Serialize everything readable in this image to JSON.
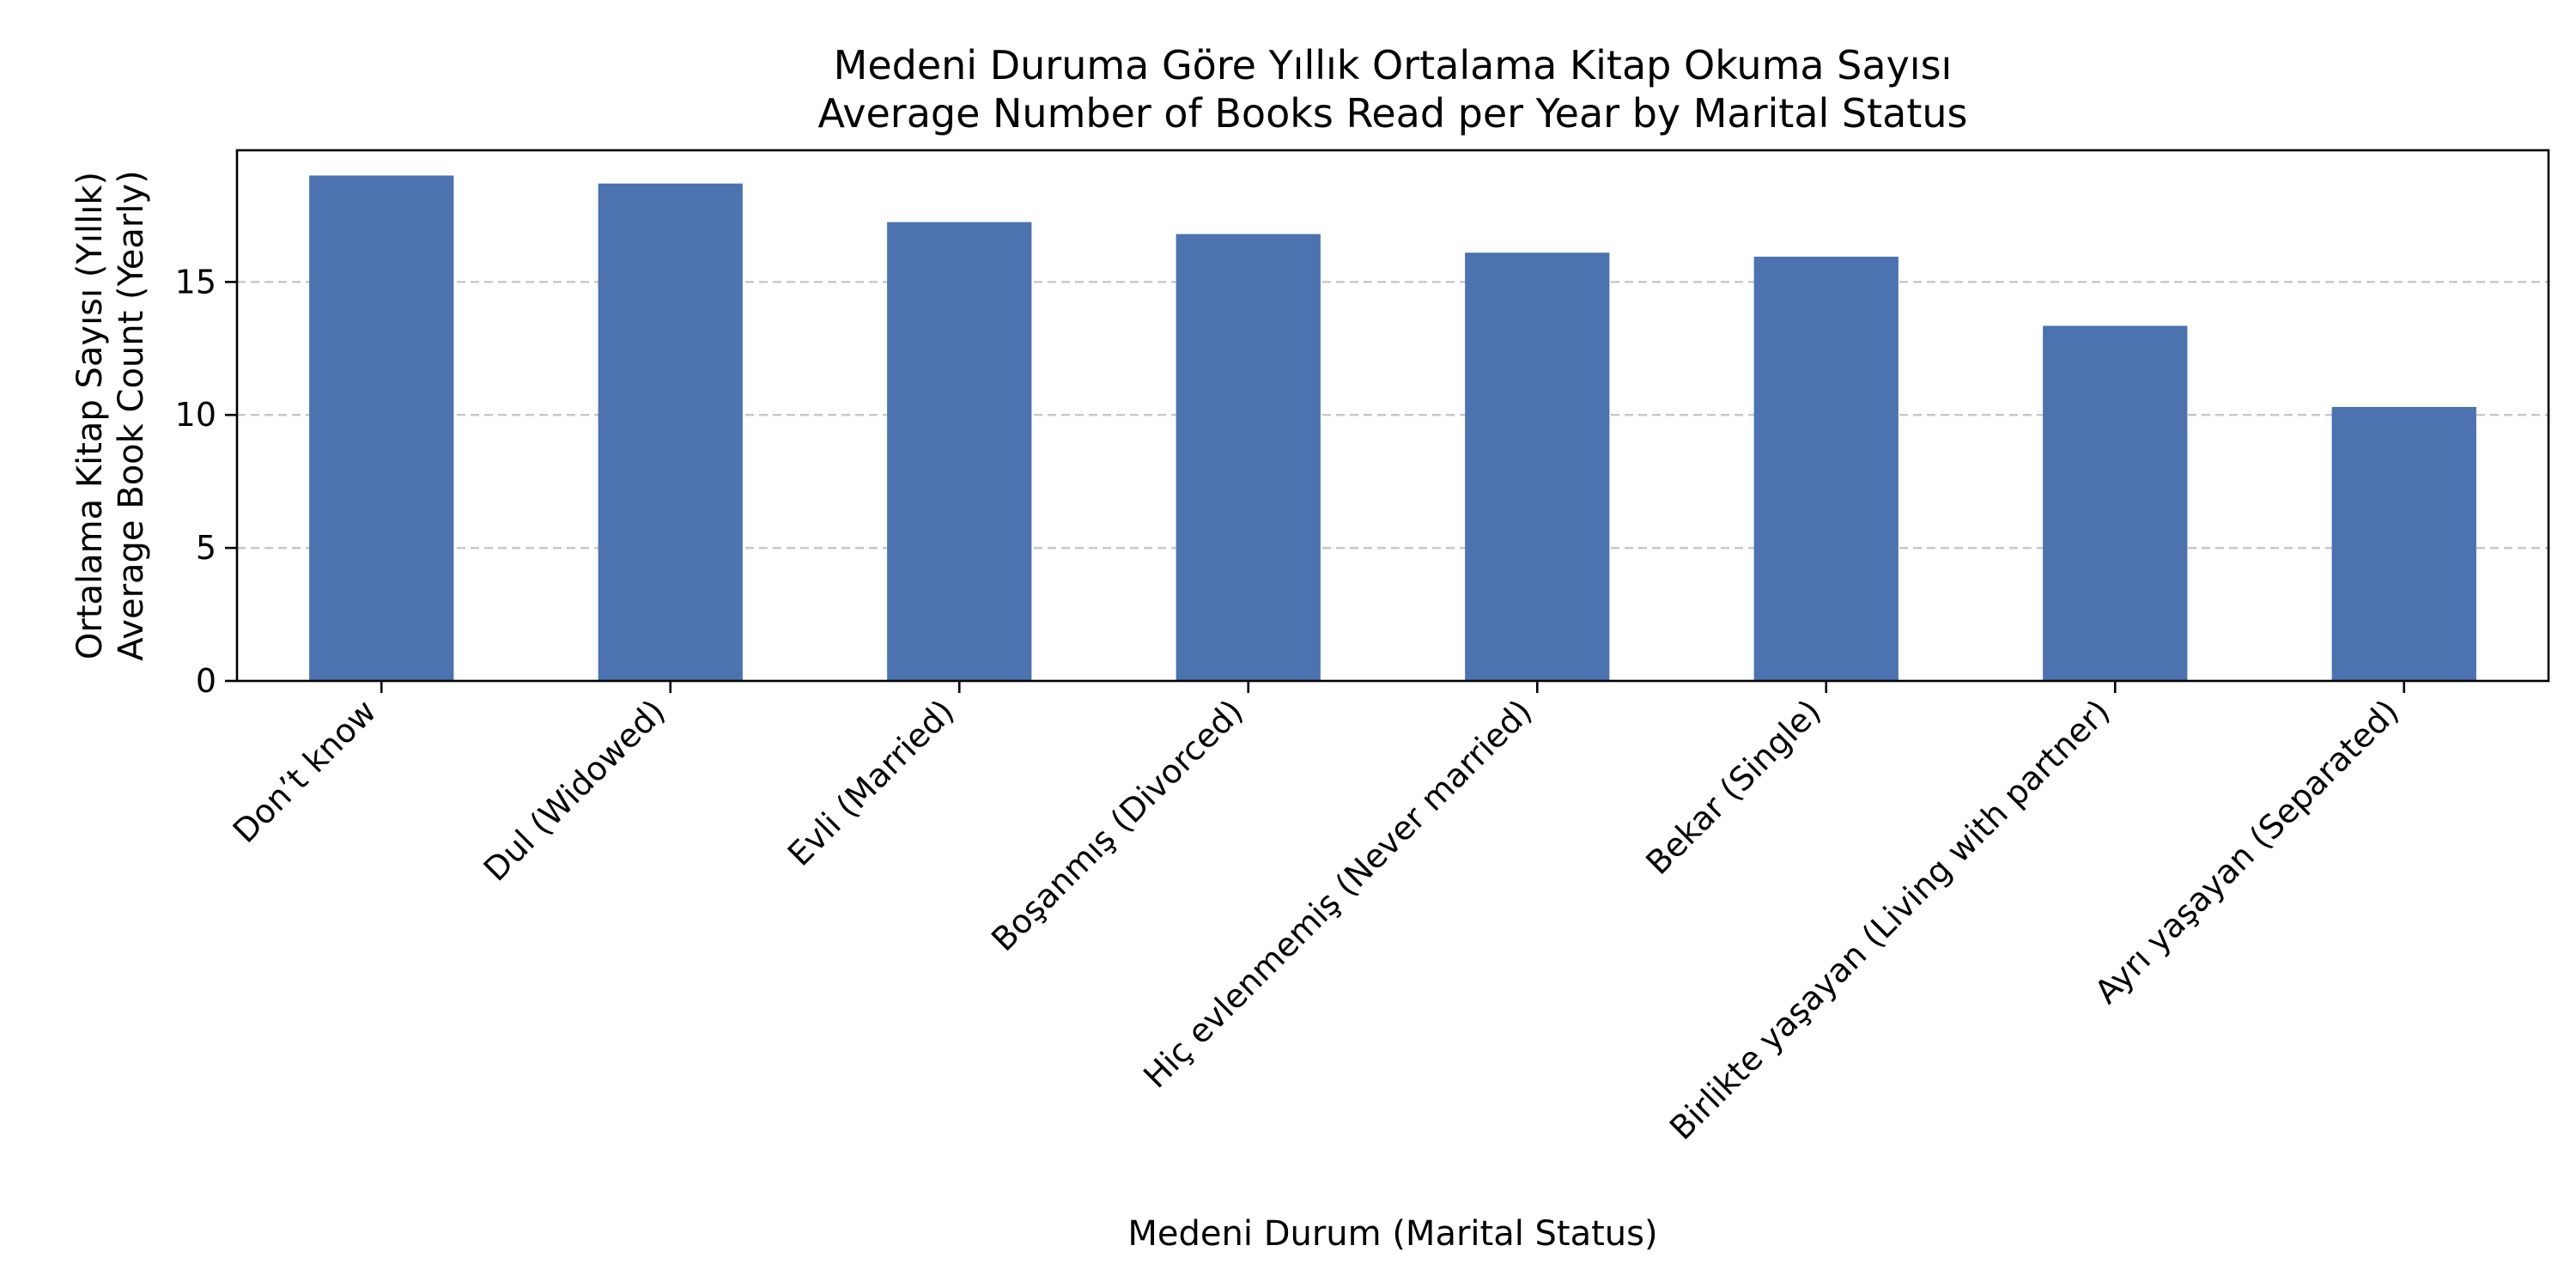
{
  "chart_data": {
    "type": "bar",
    "title_line1": "Medeni Duruma Göre Yıllık Ortalama Kitap Okuma Sayısı",
    "title_line2": "Average Number of Books Read per Year by Marital Status",
    "xlabel": "Medeni Durum (Marital Status)",
    "ylabel_line1": "Ortalama Kitap Sayısı (Yıllık)",
    "ylabel_line2": "Average Book Count (Yearly)",
    "categories": [
      "Don’t know",
      "Dul (Widowed)",
      "Evli (Married)",
      "Boşanmış (Divorced)",
      "Hiç evlenmemiş (Never married)",
      "Bekar (Single)",
      "Birlikte yaşayan (Living with partner)",
      "Ayrı yaşayan (Separated)"
    ],
    "values": [
      19.0,
      18.7,
      17.25,
      16.8,
      16.1,
      15.95,
      13.35,
      10.3
    ],
    "ylim": [
      0,
      20
    ],
    "yticks": [
      0,
      5,
      10,
      15
    ],
    "grid": true,
    "grid_axis": "y",
    "bar_color": "#4c72b0"
  }
}
